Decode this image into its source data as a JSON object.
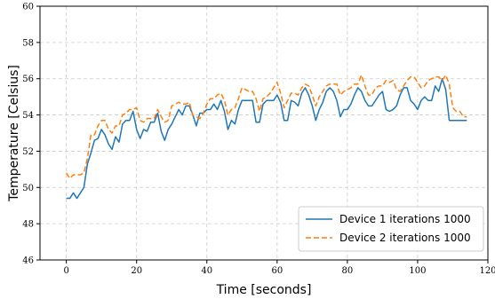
{
  "chart_data": {
    "type": "line",
    "title": "",
    "xlabel": "Time [seconds]",
    "ylabel": "Temperature [Celsius]",
    "xlim": [
      -7.5,
      120
    ],
    "ylim": [
      46,
      60
    ],
    "xticks": [
      0,
      20,
      40,
      60,
      80,
      100,
      120
    ],
    "yticks": [
      46,
      48,
      50,
      52,
      54,
      56,
      58,
      60
    ],
    "xtick_labels": [
      "0",
      "20",
      "40",
      "60",
      "80",
      "100",
      "120"
    ],
    "ytick_labels": [
      "46",
      "48",
      "50",
      "52",
      "54",
      "56",
      "58",
      "60"
    ],
    "grid": true,
    "legend_position": "lower-right",
    "series": [
      {
        "name": "Device 1 iterations 1000",
        "color": "#1f77b4",
        "style": "solid",
        "x": [
          0,
          1,
          2,
          3,
          4,
          5,
          6,
          7,
          8,
          9,
          10,
          11,
          12,
          13,
          14,
          15,
          16,
          17,
          18,
          19,
          20,
          21,
          22,
          23,
          24,
          25,
          26,
          27,
          28,
          29,
          30,
          31,
          32,
          33,
          34,
          35,
          36,
          37,
          38,
          39,
          40,
          41,
          42,
          43,
          44,
          45,
          46,
          47,
          48,
          49,
          50,
          51,
          52,
          53,
          54,
          55,
          56,
          57,
          58,
          59,
          60,
          61,
          62,
          63,
          64,
          65,
          66,
          67,
          68,
          69,
          70,
          71,
          72,
          73,
          74,
          75,
          76,
          77,
          78,
          79,
          80,
          81,
          82,
          83,
          84,
          85,
          86,
          87,
          88,
          89,
          90,
          91,
          92,
          93,
          94,
          95,
          96,
          97,
          98,
          99,
          100,
          101,
          102,
          103,
          104,
          105,
          106,
          107,
          108,
          109,
          110,
          111,
          112,
          113,
          114
        ],
        "y": [
          49.4,
          49.4,
          49.7,
          49.4,
          49.7,
          50.0,
          51.3,
          51.9,
          52.6,
          52.7,
          53.2,
          52.9,
          52.4,
          52.1,
          52.8,
          52.5,
          53.5,
          53.7,
          53.7,
          54.2,
          53.2,
          52.7,
          53.2,
          53.1,
          53.6,
          53.6,
          54.1,
          53.1,
          52.6,
          53.2,
          53.5,
          53.9,
          54.3,
          54.0,
          54.5,
          54.5,
          54.0,
          53.4,
          54.1,
          54.1,
          54.3,
          54.3,
          54.6,
          54.3,
          54.8,
          54.2,
          53.2,
          53.7,
          53.5,
          54.3,
          54.8,
          54.8,
          54.8,
          54.8,
          53.6,
          53.6,
          54.6,
          54.8,
          54.8,
          54.8,
          55.1,
          54.7,
          53.7,
          53.7,
          54.8,
          54.7,
          54.5,
          55.2,
          55.5,
          55.1,
          54.5,
          53.7,
          54.3,
          54.7,
          55.3,
          55.5,
          55.3,
          54.8,
          53.9,
          54.3,
          54.3,
          54.6,
          55.1,
          55.5,
          55.3,
          54.8,
          54.5,
          54.5,
          54.8,
          55.1,
          55.3,
          54.3,
          54.2,
          54.3,
          54.5,
          55.1,
          55.5,
          55.5,
          54.8,
          54.6,
          54.3,
          54.8,
          55.0,
          54.8,
          54.8,
          55.6,
          55.3,
          56.0,
          55.4,
          53.7,
          53.7,
          53.7,
          53.7,
          53.7,
          53.7
        ]
      },
      {
        "name": "Device 2 iterations 1000",
        "color": "#ff7f0e",
        "style": "dashed",
        "x": [
          0,
          1,
          2,
          3,
          4,
          5,
          6,
          7,
          8,
          9,
          10,
          11,
          12,
          13,
          14,
          15,
          16,
          17,
          18,
          19,
          20,
          21,
          22,
          23,
          24,
          25,
          26,
          27,
          28,
          29,
          30,
          31,
          32,
          33,
          34,
          35,
          36,
          37,
          38,
          39,
          40,
          41,
          42,
          43,
          44,
          45,
          46,
          47,
          48,
          49,
          50,
          51,
          52,
          53,
          54,
          55,
          56,
          57,
          58,
          59,
          60,
          61,
          62,
          63,
          64,
          65,
          66,
          67,
          68,
          69,
          70,
          71,
          72,
          73,
          74,
          75,
          76,
          77,
          78,
          79,
          80,
          81,
          82,
          83,
          84,
          85,
          86,
          87,
          88,
          89,
          90,
          91,
          92,
          93,
          94,
          95,
          96,
          97,
          98,
          99,
          100,
          101,
          102,
          103,
          104,
          105,
          106,
          107,
          108,
          109,
          110,
          111,
          112,
          113,
          114
        ],
        "y": [
          50.8,
          50.5,
          50.7,
          50.7,
          50.7,
          50.8,
          51.6,
          52.9,
          52.9,
          53.4,
          53.7,
          53.7,
          53.2,
          53.0,
          53.4,
          53.4,
          54.0,
          54.1,
          54.3,
          54.3,
          54.4,
          53.7,
          53.6,
          53.8,
          53.8,
          53.8,
          54.3,
          53.9,
          53.6,
          53.7,
          54.5,
          54.6,
          54.7,
          54.6,
          54.6,
          54.7,
          54.0,
          53.9,
          53.8,
          54.1,
          54.6,
          54.9,
          54.9,
          55.1,
          55.2,
          54.8,
          54.0,
          54.3,
          54.4,
          54.9,
          55.5,
          55.4,
          55.3,
          55.3,
          54.9,
          54.2,
          54.9,
          55.0,
          55.2,
          55.5,
          55.8,
          55.2,
          54.4,
          54.8,
          55.2,
          55.2,
          55.1,
          55.5,
          55.7,
          55.6,
          55.1,
          54.5,
          55.0,
          55.3,
          55.6,
          55.7,
          55.7,
          55.7,
          55.1,
          55.3,
          55.4,
          55.5,
          55.7,
          55.7,
          56.2,
          55.6,
          55.1,
          55.1,
          55.5,
          55.6,
          55.6,
          55.9,
          55.8,
          55.9,
          55.4,
          55.3,
          55.6,
          55.9,
          56.1,
          56.1,
          55.8,
          55.5,
          55.6,
          55.9,
          56.0,
          56.1,
          56.1,
          55.9,
          56.2,
          55.7,
          54.4,
          54.2,
          54.2,
          53.9,
          53.9
        ]
      }
    ]
  }
}
